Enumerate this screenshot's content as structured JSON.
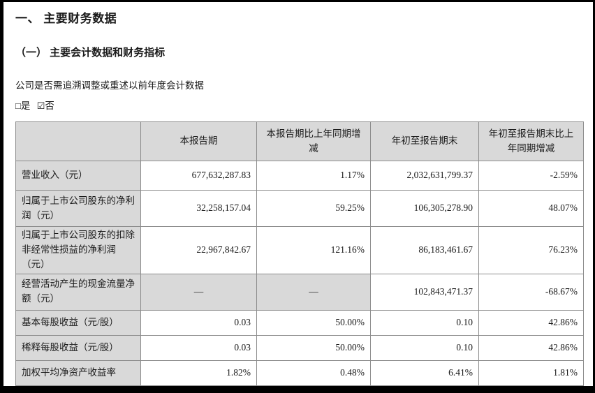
{
  "page": {
    "heading1": "一、 主要财务数据",
    "heading2": "（一） 主要会计数据和财务指标",
    "restatement_question": "公司是否需追溯调整或重述以前年度会计数据",
    "yes_option": {
      "icon": "□",
      "label": "是"
    },
    "no_option": {
      "icon": "☑",
      "label": "否"
    }
  },
  "table": {
    "columns": [
      "",
      "本报告期",
      "本报告期比上年同期增减",
      "年初至报告期末",
      "年初至报告期末比上年同期增减"
    ],
    "rows": [
      {
        "label": "营业收入（元）",
        "values": [
          "677,632,287.83",
          "1.17%",
          "2,032,631,799.37",
          "-2.59%"
        ]
      },
      {
        "label": "归属于上市公司股东的净利润（元）",
        "values": [
          "32,258,157.04",
          "59.25%",
          "106,305,278.90",
          "48.07%"
        ]
      },
      {
        "label": "归属于上市公司股东的扣除非经常性损益的净利润（元）",
        "values": [
          "22,967,842.67",
          "121.16%",
          "86,183,461.67",
          "76.23%"
        ]
      },
      {
        "label": "经营活动产生的现金流量净额（元）",
        "values": [
          "—",
          "—",
          "102,843,471.37",
          "-68.67%"
        ]
      },
      {
        "label": "基本每股收益（元/股）",
        "values": [
          "0.03",
          "50.00%",
          "0.10",
          "42.86%"
        ]
      },
      {
        "label": "稀释每股收益（元/股）",
        "values": [
          "0.03",
          "50.00%",
          "0.10",
          "42.86%"
        ]
      },
      {
        "label": "加权平均净资产收益率",
        "values": [
          "1.82%",
          "0.48%",
          "6.41%",
          "1.81%"
        ]
      }
    ]
  },
  "colors": {
    "header_bg": "#d9d9d9",
    "label_bg": "#d9d9d9",
    "grid": "#8c8c8c",
    "frame": "#000000"
  }
}
